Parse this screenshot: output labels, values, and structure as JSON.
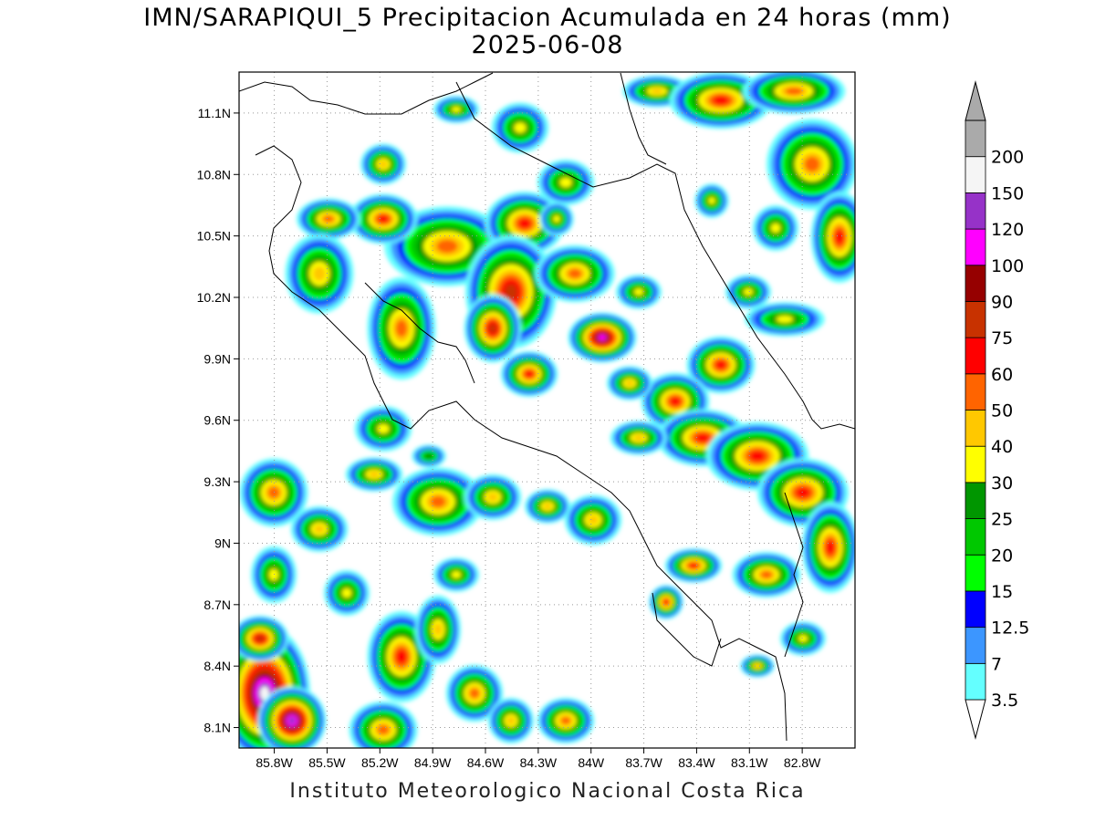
{
  "title": {
    "line1": "IMN/SARAPIQUI_5 Precipitacion Acumulada en 24 horas (mm)",
    "line2": "2025-06-08"
  },
  "credit": "Instituto Meteorologico Nacional Costa Rica",
  "map": {
    "lon_range": [
      -86.0,
      -82.5
    ],
    "lat_range": [
      8.0,
      11.3
    ],
    "lon_ticks": [
      "85.8W",
      "85.5W",
      "85.2W",
      "84.9W",
      "84.6W",
      "84.3W",
      "84W",
      "83.7W",
      "83.4W",
      "83.1W",
      "82.8W"
    ],
    "lon_tick_values": [
      -85.8,
      -85.5,
      -85.2,
      -84.9,
      -84.6,
      -84.3,
      -84.0,
      -83.7,
      -83.4,
      -83.1,
      -82.8
    ],
    "lat_ticks": [
      "8.1N",
      "8.4N",
      "8.7N",
      "9N",
      "9.3N",
      "9.6N",
      "9.9N",
      "10.2N",
      "10.5N",
      "10.8N",
      "11.1N"
    ],
    "lat_tick_values": [
      8.1,
      8.4,
      8.7,
      9.0,
      9.3,
      9.6,
      9.9,
      10.2,
      10.5,
      10.8,
      11.1
    ],
    "grid": "dotted",
    "coastline_color": "#000000"
  },
  "legend": {
    "levels": [
      "3.5",
      "7",
      "12.5",
      "15",
      "20",
      "25",
      "30",
      "40",
      "50",
      "60",
      "75",
      "90",
      "100",
      "120",
      "150",
      "200"
    ],
    "colors": [
      "#64FFFF",
      "#3C96FF",
      "#0000FF",
      "#00FF00",
      "#00C800",
      "#009600",
      "#FFFF00",
      "#FFC800",
      "#FF6400",
      "#FF0000",
      "#C83200",
      "#960000",
      "#FF00FF",
      "#9632C8",
      "#F5F5F5",
      "#AAAAAA"
    ]
  }
}
